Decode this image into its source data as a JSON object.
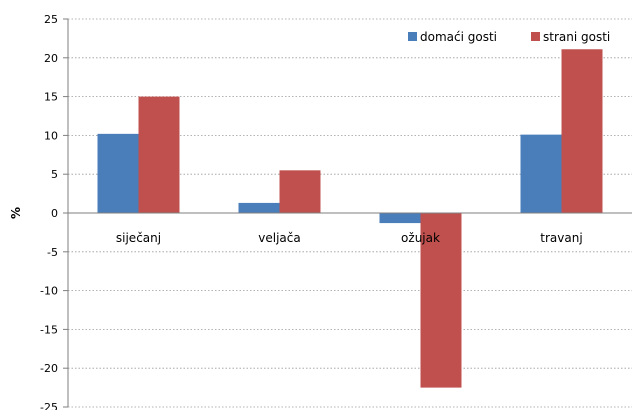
{
  "chart_data": {
    "type": "bar",
    "title": "",
    "xlabel": "",
    "ylabel": "%",
    "ylim": [
      -25,
      25
    ],
    "ytick_step": 5,
    "yticks": [
      "25",
      "20",
      "15",
      "10",
      "5",
      "0",
      "-5",
      "-10",
      "-15",
      "-20",
      "-25"
    ],
    "grid": true,
    "legend_position": "top-right",
    "categories": [
      "siječanj",
      "veljača",
      "ožujak",
      "travanj"
    ],
    "series": [
      {
        "name": "domaći gosti",
        "color": "#4a7ebb",
        "values": [
          10.2,
          1.3,
          -1.3,
          10.1
        ]
      },
      {
        "name": "strani gosti",
        "color": "#c0504d",
        "values": [
          15.0,
          5.5,
          -22.5,
          21.1
        ]
      }
    ]
  }
}
